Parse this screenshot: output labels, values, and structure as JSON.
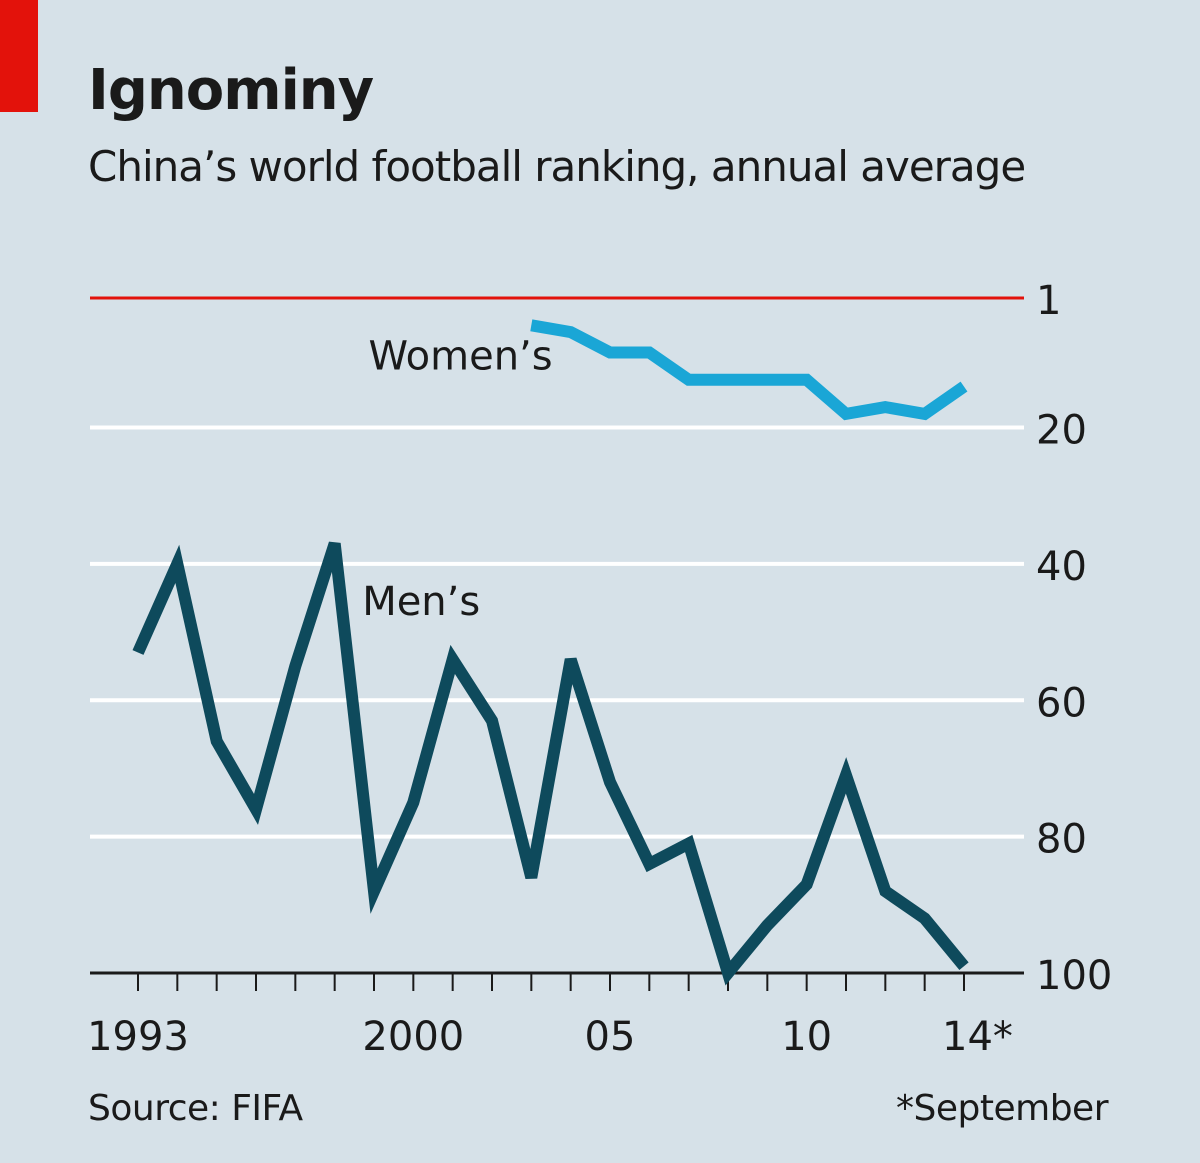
{
  "header": {
    "title": "Ignominy",
    "subtitle": "China’s world football ranking, annual average"
  },
  "footer": {
    "source": "Source: FIFA",
    "footnote": "*September"
  },
  "colors": {
    "background": "#d6e1e8",
    "accent_red": "#e3120b",
    "womens_line": "#1aa6d6",
    "mens_line": "#0e4a5c",
    "gridline": "#ffffff",
    "axis": "#1a1a1a"
  },
  "chart_data": {
    "type": "line",
    "title": "",
    "xlabel": "",
    "ylabel": "",
    "y_inverted": true,
    "ylim": [
      1,
      100
    ],
    "xlim": [
      1993,
      2014
    ],
    "y_ticks": [
      {
        "value": 1,
        "label": "1"
      },
      {
        "value": 20,
        "label": "20"
      },
      {
        "value": 40,
        "label": "40"
      },
      {
        "value": 60,
        "label": "60"
      },
      {
        "value": 80,
        "label": "80"
      },
      {
        "value": 100,
        "label": "100"
      }
    ],
    "x_tick_labels": [
      {
        "value": 1993,
        "label": "1993"
      },
      {
        "value": 2000,
        "label": "2000"
      },
      {
        "value": 2005,
        "label": "05"
      },
      {
        "value": 2010,
        "label": "10"
      },
      {
        "value": 2014,
        "label": "14*"
      }
    ],
    "x_minor_ticks": [
      1993,
      1994,
      1995,
      1996,
      1997,
      1998,
      1999,
      2000,
      2001,
      2002,
      2003,
      2004,
      2005,
      2006,
      2007,
      2008,
      2009,
      2010,
      2011,
      2012,
      2013,
      2014
    ],
    "grid": true,
    "series": [
      {
        "name": "Women’s",
        "color": "#1aa6d6",
        "points": [
          {
            "x": 2003,
            "y": 5
          },
          {
            "x": 2004,
            "y": 6
          },
          {
            "x": 2005,
            "y": 9
          },
          {
            "x": 2006,
            "y": 9
          },
          {
            "x": 2007,
            "y": 13
          },
          {
            "x": 2008,
            "y": 13
          },
          {
            "x": 2009,
            "y": 13
          },
          {
            "x": 2010,
            "y": 13
          },
          {
            "x": 2011,
            "y": 18
          },
          {
            "x": 2012,
            "y": 17
          },
          {
            "x": 2013,
            "y": 18
          },
          {
            "x": 2014,
            "y": 14
          }
        ]
      },
      {
        "name": "Men’s",
        "color": "#0e4a5c",
        "points": [
          {
            "x": 1993,
            "y": 53
          },
          {
            "x": 1994,
            "y": 40
          },
          {
            "x": 1995,
            "y": 66
          },
          {
            "x": 1996,
            "y": 76
          },
          {
            "x": 1997,
            "y": 55
          },
          {
            "x": 1998,
            "y": 37
          },
          {
            "x": 1999,
            "y": 88
          },
          {
            "x": 2000,
            "y": 75
          },
          {
            "x": 2001,
            "y": 54
          },
          {
            "x": 2002,
            "y": 63
          },
          {
            "x": 2003,
            "y": 86
          },
          {
            "x": 2004,
            "y": 54
          },
          {
            "x": 2005,
            "y": 72
          },
          {
            "x": 2006,
            "y": 84
          },
          {
            "x": 2007,
            "y": 81
          },
          {
            "x": 2008,
            "y": 100
          },
          {
            "x": 2009,
            "y": 93
          },
          {
            "x": 2010,
            "y": 87
          },
          {
            "x": 2011,
            "y": 71
          },
          {
            "x": 2012,
            "y": 88
          },
          {
            "x": 2013,
            "y": 92
          },
          {
            "x": 2014,
            "y": 99
          }
        ]
      }
    ]
  }
}
